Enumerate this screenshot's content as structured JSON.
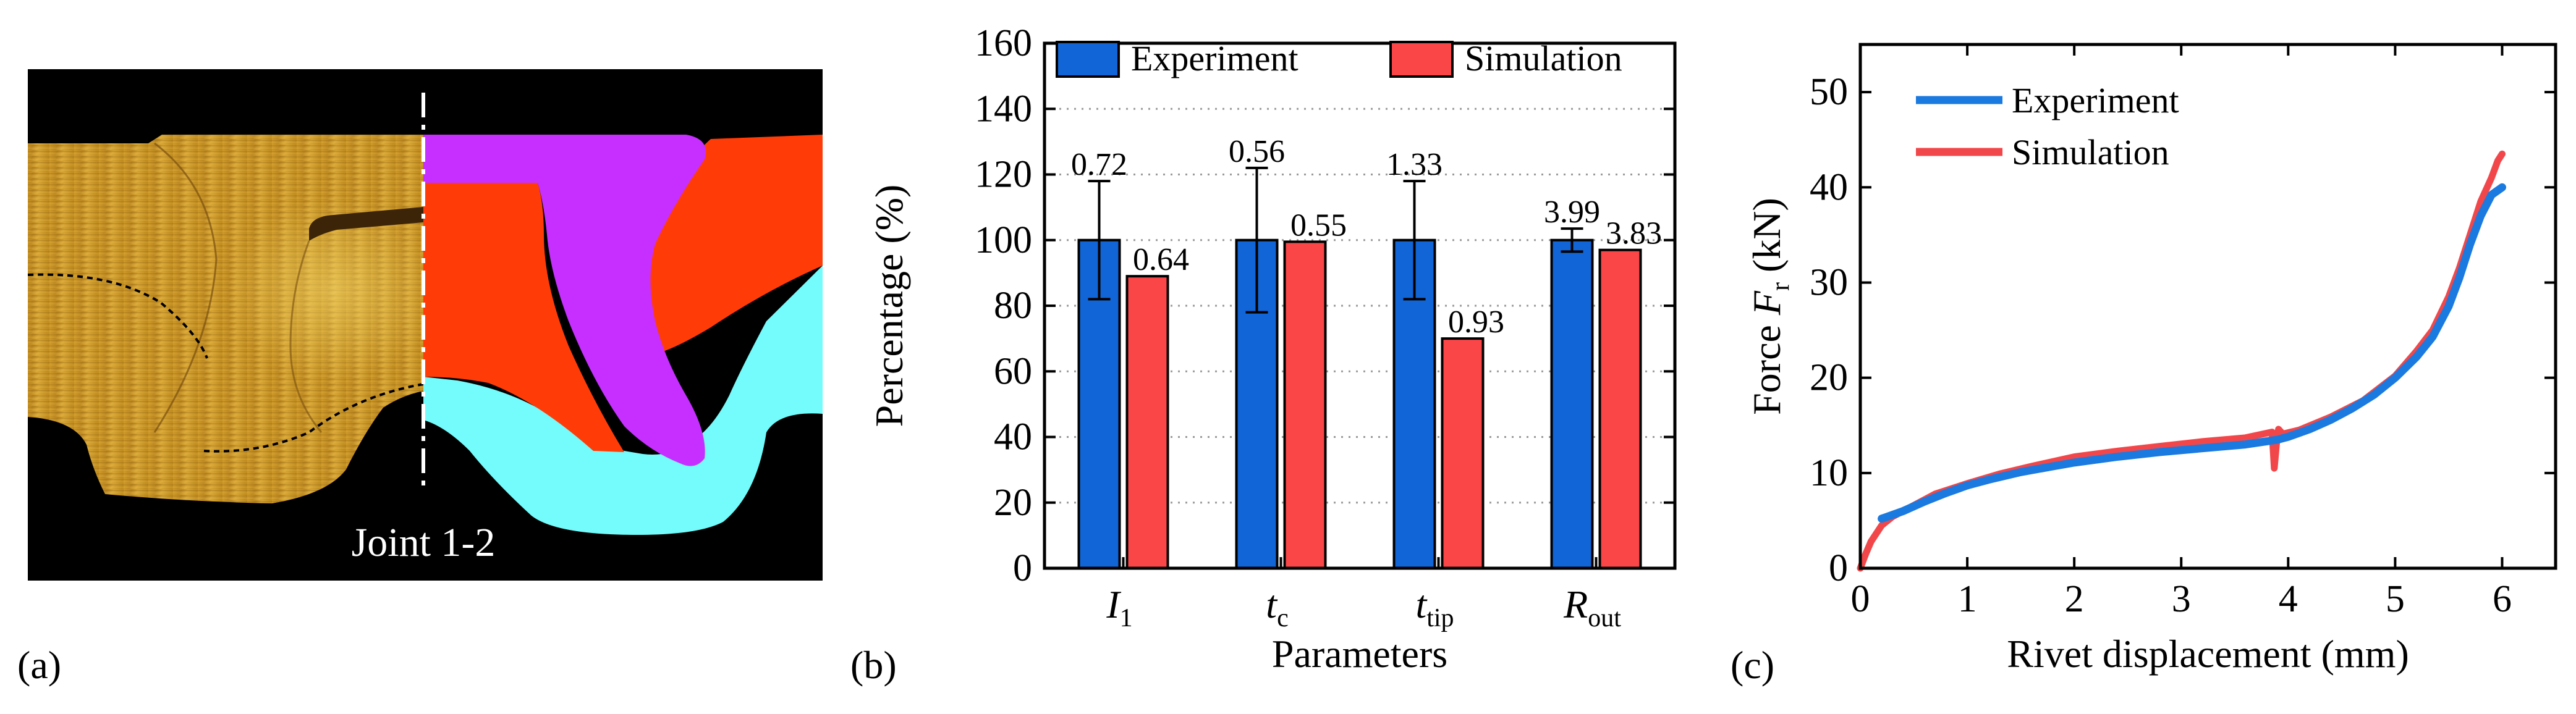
{
  "panel_labels": [
    "(a)",
    "(b)",
    "(c)"
  ],
  "panel_a": {
    "caption": "Joint 1-2",
    "colors": {
      "rivet": "#c62fff",
      "upper_sheet": "#ff3c08",
      "lower_sheet": "#74fbfb",
      "background": "#000000",
      "micrograph": "#c8901f"
    }
  },
  "chart_data": [
    {
      "type": "bar",
      "title": "",
      "xlabel": "Parameters",
      "ylabel": "Percentage (%)",
      "ylim": [
        0,
        160
      ],
      "yticks": [
        "0",
        "20",
        "40",
        "60",
        "80",
        "100",
        "120",
        "140",
        "160"
      ],
      "grid": "horizontal dotted",
      "legend_position": "top",
      "categories": [
        {
          "base": "I",
          "sub": "1"
        },
        {
          "base": "t",
          "sub": "c"
        },
        {
          "base": "t",
          "sub": "tip"
        },
        {
          "base": "R",
          "sub": "out"
        }
      ],
      "series": [
        {
          "name": "Experiment",
          "color": "#1165d6",
          "values": [
            100,
            100,
            100,
            100
          ],
          "errors": [
            18,
            22,
            18,
            3.5
          ],
          "labels": [
            "0.72",
            "0.56",
            "1.33",
            "3.99"
          ]
        },
        {
          "name": "Simulation",
          "color": "#fb4648",
          "values": [
            89,
            99.5,
            70,
            97
          ],
          "labels": [
            "0.64",
            "0.55",
            "0.93",
            "3.83"
          ]
        }
      ]
    },
    {
      "type": "line",
      "title": "",
      "xlabel": "Rivet displacement (mm)",
      "ylabel": {
        "base": "Force ",
        "var": "F",
        "sub": "r",
        "unit": " (kN)"
      },
      "xlim": [
        0,
        6.5
      ],
      "ylim": [
        0,
        55
      ],
      "xticks": [
        "0",
        "1",
        "2",
        "3",
        "4",
        "5",
        "6"
      ],
      "yticks": [
        "0",
        "10",
        "20",
        "30",
        "40",
        "50"
      ],
      "legend_position": "top-left",
      "series": [
        {
          "name": "Experiment",
          "color": "#1b7ae0",
          "x": [
            0.2,
            0.4,
            0.6,
            0.8,
            1.0,
            1.2,
            1.5,
            1.8,
            2.0,
            2.4,
            2.8,
            3.2,
            3.6,
            3.9,
            4.0,
            4.2,
            4.4,
            4.6,
            4.8,
            5.0,
            5.2,
            5.35,
            5.5,
            5.6,
            5.7,
            5.8,
            5.9,
            6.0
          ],
          "y": [
            5.2,
            6.0,
            7.0,
            7.9,
            8.7,
            9.3,
            10.1,
            10.7,
            11.1,
            11.7,
            12.2,
            12.6,
            13.0,
            13.5,
            13.8,
            14.6,
            15.6,
            16.8,
            18.2,
            20.0,
            22.2,
            24.3,
            27.5,
            30.5,
            34.0,
            37.0,
            39.2,
            40.0
          ]
        },
        {
          "name": "Simulation",
          "color": "#f2474a",
          "x": [
            0.0,
            0.05,
            0.1,
            0.2,
            0.3,
            0.5,
            0.7,
            1.0,
            1.3,
            1.6,
            2.0,
            2.4,
            2.8,
            3.2,
            3.6,
            3.85,
            3.87,
            3.89,
            3.91,
            3.95,
            4.1,
            4.4,
            4.7,
            5.0,
            5.2,
            5.35,
            5.5,
            5.6,
            5.7,
            5.8,
            5.9,
            5.96,
            6.0
          ],
          "y": [
            0.0,
            1.5,
            2.8,
            4.5,
            5.4,
            6.6,
            7.8,
            8.9,
            9.9,
            10.7,
            11.7,
            12.3,
            12.8,
            13.3,
            13.7,
            14.3,
            10.5,
            13.0,
            14.6,
            14.1,
            14.5,
            15.9,
            17.6,
            20.2,
            22.8,
            25.0,
            28.5,
            31.5,
            35.0,
            38.5,
            41.0,
            42.8,
            43.5
          ]
        }
      ]
    }
  ]
}
